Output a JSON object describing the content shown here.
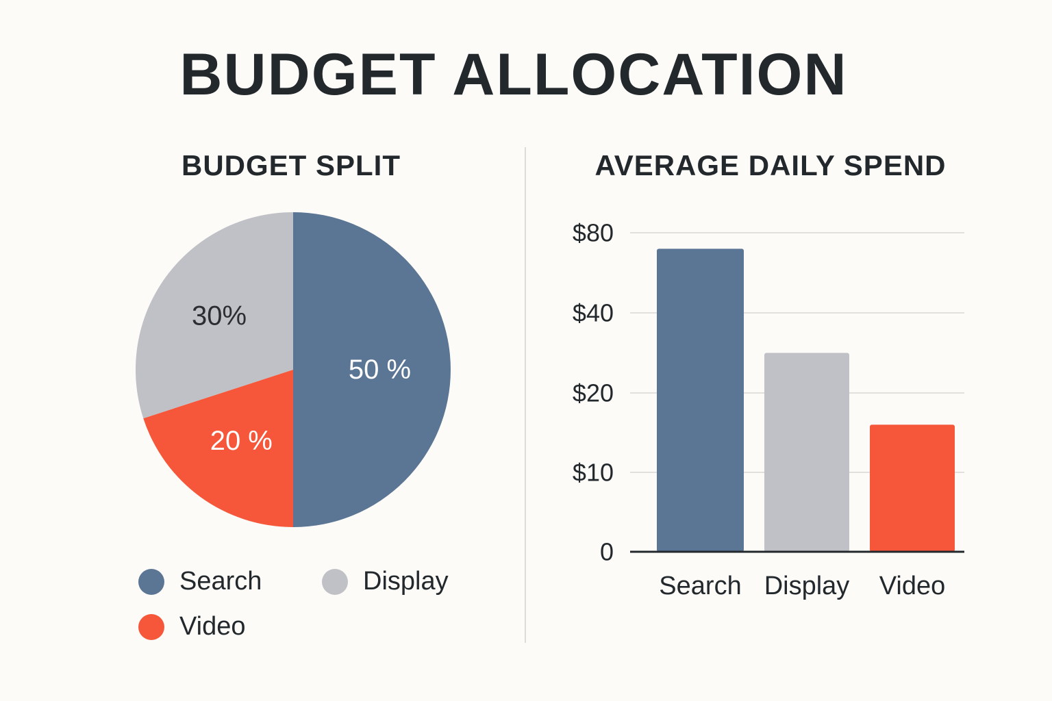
{
  "title": "BUDGET ALLOCATION",
  "colors": {
    "search": "#5b7594",
    "display": "#c0c1c6",
    "video": "#f6573a",
    "background": "#fcfbf8",
    "text": "#23282c"
  },
  "chart_data": [
    {
      "type": "pie",
      "title": "BUDGET SPLIT",
      "slices": [
        {
          "label": "Search",
          "value": 50,
          "display": "50 %",
          "color": "#5b7594"
        },
        {
          "label": "Video",
          "value": 20,
          "display": "20 %",
          "color": "#f6573a"
        },
        {
          "label": "Display",
          "value": 30,
          "display": "30%",
          "color": "#c0c1c6"
        }
      ],
      "legend": [
        {
          "label": "Search",
          "color": "#5b7594"
        },
        {
          "label": "Display",
          "color": "#c0c1c6"
        },
        {
          "label": "Video",
          "color": "#f6573a"
        }
      ],
      "legend_position": "bottom"
    },
    {
      "type": "bar",
      "title": "AVERAGE DAILY SPEND",
      "categories": [
        "Search",
        "Display",
        "Video"
      ],
      "values": [
        72,
        30,
        16
      ],
      "colors": [
        "#5b7594",
        "#c0c1c6",
        "#f6573a"
      ],
      "yticks": [
        {
          "value": 0,
          "label": "0"
        },
        {
          "value": 10,
          "label": "$10"
        },
        {
          "value": 20,
          "label": "$20"
        },
        {
          "value": 40,
          "label": "$40"
        },
        {
          "value": 80,
          "label": "$80"
        }
      ],
      "ylim": [
        0,
        80
      ],
      "grid": true
    }
  ]
}
